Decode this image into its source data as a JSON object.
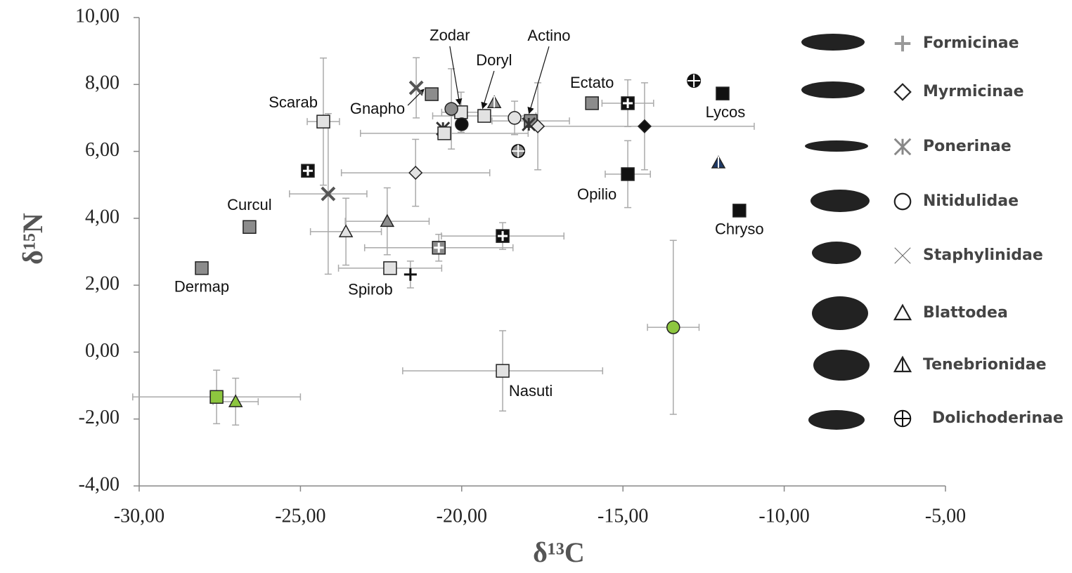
{
  "chart_data": {
    "type": "scatter",
    "xlabel": "δ¹³C",
    "ylabel": "δ¹⁵N",
    "xlim": [
      -30,
      -5
    ],
    "ylim": [
      -4,
      10
    ],
    "xticks": [
      {
        "value": -30,
        "label": "-30,00"
      },
      {
        "value": -25,
        "label": "-25,00"
      },
      {
        "value": -20,
        "label": "-20,00"
      },
      {
        "value": -15,
        "label": "-15,00"
      },
      {
        "value": -10,
        "label": "-10,00"
      },
      {
        "value": -5,
        "label": "-5,00"
      }
    ],
    "yticks": [
      {
        "value": -4,
        "label": "-4,00"
      },
      {
        "value": -2,
        "label": "-2,00"
      },
      {
        "value": 0,
        "label": "0,00"
      },
      {
        "value": 2,
        "label": "2,00"
      },
      {
        "value": 4,
        "label": "4,00"
      },
      {
        "value": 6,
        "label": "6,00"
      },
      {
        "value": 8,
        "label": "8,00"
      },
      {
        "value": 10,
        "label": "10,00"
      }
    ],
    "legend": [
      {
        "name": "Formicinae",
        "marker": "plus"
      },
      {
        "name": "Myrmicinae",
        "marker": "diamond"
      },
      {
        "name": "Ponerinae",
        "marker": "asterisk"
      },
      {
        "name": "Nitidulidae",
        "marker": "circle"
      },
      {
        "name": "Staphylinidae",
        "marker": "x"
      },
      {
        "name": "Blattodea",
        "marker": "triangle"
      },
      {
        "name": "Tenebrionidae",
        "marker": "triangle-half"
      },
      {
        "name": "Dolichoderinae",
        "marker": "oplus"
      }
    ],
    "points": [
      {
        "x": -24.29,
        "y": 6.89,
        "xerr": 0.5,
        "yerr": 1.9,
        "marker": "square",
        "fill": "#e2e2e2",
        "label": "Scarab"
      },
      {
        "x": -20.93,
        "y": 7.71,
        "marker": "square",
        "fill": "#8c8c8c",
        "label": "Gnapho"
      },
      {
        "x": -21.41,
        "y": 7.9,
        "yerr": 0.9,
        "marker": "x",
        "fill": "#555555"
      },
      {
        "x": -20.02,
        "y": 7.17,
        "xerr": 0.6,
        "yerr": 0.6,
        "marker": "square",
        "fill": "#e2e2e2",
        "label": "Zodar"
      },
      {
        "x": -20.32,
        "y": 7.27,
        "yerr": 1.2,
        "marker": "circle",
        "fill": "#8c8c8c"
      },
      {
        "x": -20.0,
        "y": 6.81,
        "marker": "circle",
        "fill": "#111111"
      },
      {
        "x": -20.58,
        "y": 6.68,
        "marker": "asterisk",
        "fill": "#333333"
      },
      {
        "x": -20.54,
        "y": 6.54,
        "xerr": 2.6,
        "marker": "square",
        "fill": "#e2e2e2"
      },
      {
        "x": -19.3,
        "y": 7.06,
        "xerr": 1.6,
        "marker": "square",
        "fill": "#e2e2e2",
        "label": "Doryl"
      },
      {
        "x": -18.99,
        "y": 7.46,
        "marker": "triangle-half",
        "fill": "#8c8c8c"
      },
      {
        "x": -17.86,
        "y": 6.91,
        "xerr": 1.2,
        "marker": "square",
        "fill": "#8c8c8c",
        "label": "Actino"
      },
      {
        "x": -18.36,
        "y": 7.0,
        "yerr": 0.5,
        "marker": "circle",
        "fill": "#e2e2e2"
      },
      {
        "x": -17.92,
        "y": 6.81,
        "marker": "asterisk",
        "fill": "#333333"
      },
      {
        "x": -17.64,
        "y": 6.75,
        "yerr": 1.3,
        "marker": "diamond",
        "fill": "#e2e2e2"
      },
      {
        "x": -18.25,
        "y": 6.01,
        "marker": "oplus",
        "fill": "#8c8c8c"
      },
      {
        "x": -15.96,
        "y": 7.44,
        "marker": "square",
        "fill": "#8c8c8c",
        "label": "Ectato"
      },
      {
        "x": -14.85,
        "y": 7.44,
        "xerr": 0.8,
        "yerr": 0.7,
        "marker": "square-plus",
        "fill": "#111111"
      },
      {
        "x": -14.33,
        "y": 6.75,
        "xerr": 3.4,
        "yerr": 1.3,
        "marker": "diamond",
        "fill": "#111111"
      },
      {
        "x": -11.91,
        "y": 7.73,
        "marker": "square",
        "fill": "#111111",
        "label": "Lycos"
      },
      {
        "x": -12.8,
        "y": 8.11,
        "marker": "oplus",
        "fill": "#111111"
      },
      {
        "x": -12.04,
        "y": 5.66,
        "marker": "triangle-half",
        "fill": "#1f3a66"
      },
      {
        "x": -14.85,
        "y": 5.32,
        "xerr": 0.7,
        "yerr": 1.0,
        "marker": "square",
        "fill": "#111111",
        "label": "Opilio"
      },
      {
        "x": -11.39,
        "y": 4.23,
        "marker": "square",
        "fill": "#111111",
        "label": "Chryso"
      },
      {
        "x": -24.77,
        "y": 5.42,
        "marker": "square-plus",
        "fill": "#111111"
      },
      {
        "x": -24.14,
        "y": 4.73,
        "xerr": 1.2,
        "yerr": 2.4,
        "marker": "x",
        "fill": "#555555"
      },
      {
        "x": -21.43,
        "y": 5.36,
        "xerr": 2.3,
        "yerr": 1.0,
        "marker": "diamond",
        "fill": "#e2e2e2"
      },
      {
        "x": -26.58,
        "y": 3.74,
        "marker": "square",
        "fill": "#8c8c8c",
        "label": "Curcul"
      },
      {
        "x": -28.06,
        "y": 2.51,
        "marker": "square",
        "fill": "#8c8c8c",
        "label": "Dermap"
      },
      {
        "x": -23.59,
        "y": 3.6,
        "xerr": 1.1,
        "yerr": 1.0,
        "marker": "triangle",
        "fill": "#e2e2e2"
      },
      {
        "x": -22.31,
        "y": 3.91,
        "xerr": 1.3,
        "yerr": 1.0,
        "marker": "triangle",
        "fill": "#8c8c8c"
      },
      {
        "x": -20.71,
        "y": 3.12,
        "xerr": 2.3,
        "yerr": 0.4,
        "marker": "square-plus",
        "fill": "#8c8c8c"
      },
      {
        "x": -18.73,
        "y": 3.47,
        "xerr": 1.9,
        "yerr": 0.4,
        "marker": "square-plus",
        "fill": "#111111"
      },
      {
        "x": -22.22,
        "y": 2.51,
        "xerr": 1.6,
        "marker": "square",
        "fill": "#e2e2e2",
        "label": "Spirob"
      },
      {
        "x": -21.59,
        "y": 2.32,
        "yerr": 0.4,
        "marker": "plus",
        "fill": "#111111"
      },
      {
        "x": -13.44,
        "y": 0.74,
        "xerr": 0.8,
        "yerr": 2.6,
        "marker": "circle",
        "fill": "#8dc63f"
      },
      {
        "x": -18.73,
        "y": -0.56,
        "xerr": 3.1,
        "yerr": 1.2,
        "marker": "square",
        "fill": "#e2e2e2",
        "label": "Nasuti"
      },
      {
        "x": -27.6,
        "y": -1.34,
        "xerr": 2.6,
        "yerr": 0.8,
        "marker": "square",
        "fill": "#8dc63f"
      },
      {
        "x": -27.01,
        "y": -1.48,
        "xerr": 0.7,
        "yerr": 0.7,
        "marker": "triangle",
        "fill": "#8dc63f"
      }
    ]
  }
}
